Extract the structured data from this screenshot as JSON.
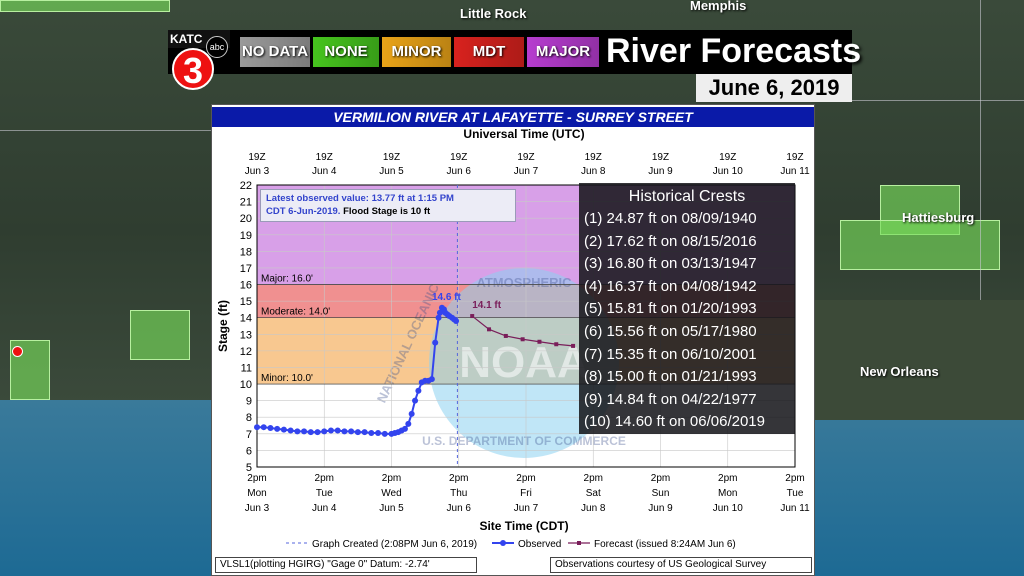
{
  "header": {
    "station_call": "KATC",
    "station_number": "3",
    "network": "abc",
    "categories": [
      {
        "label": "NO DATA",
        "color": "#9a9a9a"
      },
      {
        "label": "NONE",
        "color": "#46c41e"
      },
      {
        "label": "MINOR",
        "color": "#e9a318"
      },
      {
        "label": "MDT",
        "color": "#d8221e"
      },
      {
        "label": "MAJOR",
        "color": "#b63ccf"
      }
    ],
    "title": "River Forecasts",
    "date": "June 6, 2019"
  },
  "map_labels": {
    "little_rock": "Little Rock",
    "memphis": "Memphis",
    "hattiesburg": "Hattiesburg",
    "new_orleans": "New Orleans"
  },
  "panel": {
    "title": "VERMILION RIVER AT LAFAYETTE - SURREY STREET",
    "note_line1": "Latest observed value: 13.77 ft at 1:15 PM",
    "note_line2a": "CDT 6-Jun-2019.",
    "note_line2b": "Flood Stage is 10 ft",
    "footer_left": "VLSL1(plotting HGIRG) \"Gage 0\" Datum: -2.74'",
    "footer_right": "Observations courtesy of US Geological Survey"
  },
  "crests": {
    "title": "Historical Crests",
    "items": [
      "(1) 24.87 ft on 08/09/1940",
      "(2) 17.62 ft on 08/15/2016",
      "(3) 16.80 ft on 03/13/1947",
      "(4) 16.37 ft on 04/08/1942",
      "(5) 15.81 ft on 01/20/1993",
      "(6) 15.56 ft on 05/17/1980",
      "(7) 15.35 ft on 06/10/2001",
      "(8) 15.00 ft on 01/21/1993",
      "(9) 14.84 ft on 04/22/1977",
      "(10) 14.60 ft on 06/06/2019"
    ]
  },
  "chart_data": {
    "type": "line",
    "title": "VERMILION RIVER AT LAFAYETTE - SURREY STREET",
    "xlabel": "Site Time (CDT)",
    "x2label": "Universal Time (UTC)",
    "ylabel": "Stage (ft)",
    "ylim": [
      5,
      22
    ],
    "xlim": [
      "Jun 3 2pm",
      "Jun 11 2pm"
    ],
    "yticks": [
      5,
      6,
      7,
      8,
      9,
      10,
      11,
      12,
      13,
      14,
      15,
      16,
      17,
      18,
      19,
      20,
      21,
      22
    ],
    "xticks_bottom": [
      [
        "2pm",
        "Mon",
        "Jun 3"
      ],
      [
        "2pm",
        "Tue",
        "Jun 4"
      ],
      [
        "2pm",
        "Wed",
        "Jun 5"
      ],
      [
        "2pm",
        "Thu",
        "Jun 6"
      ],
      [
        "2pm",
        "Fri",
        "Jun 7"
      ],
      [
        "2pm",
        "Sat",
        "Jun 8"
      ],
      [
        "2pm",
        "Sun",
        "Jun 9"
      ],
      [
        "2pm",
        "Mon",
        "Jun 10"
      ],
      [
        "2pm",
        "Tue",
        "Jun 11"
      ]
    ],
    "xticks_top": [
      [
        "19Z",
        "Jun 3"
      ],
      [
        "19Z",
        "Jun 4"
      ],
      [
        "19Z",
        "Jun 5"
      ],
      [
        "19Z",
        "Jun 6"
      ],
      [
        "19Z",
        "Jun 7"
      ],
      [
        "19Z",
        "Jun 8"
      ],
      [
        "19Z",
        "Jun 9"
      ],
      [
        "19Z",
        "Jun 10"
      ],
      [
        "19Z",
        "Jun 11"
      ]
    ],
    "bands": [
      {
        "name": "Major",
        "label": "Major: 16.0'",
        "from": 16,
        "to": 22,
        "color": "#d8a0e8"
      },
      {
        "name": "Moderate",
        "label": "Moderate: 14.0'",
        "from": 14,
        "to": 16,
        "color": "#f09090"
      },
      {
        "name": "Minor",
        "label": "Minor: 10.0'",
        "from": 10,
        "to": 14,
        "color": "#f8c890"
      }
    ],
    "graph_created_day": 2.98,
    "series": [
      {
        "name": "Observed",
        "color": "#3344ee",
        "x": [
          0.0,
          0.1,
          0.2,
          0.3,
          0.4,
          0.5,
          0.6,
          0.7,
          0.8,
          0.9,
          1.0,
          1.1,
          1.2,
          1.3,
          1.4,
          1.5,
          1.6,
          1.7,
          1.8,
          1.9,
          2.0,
          2.05,
          2.1,
          2.15,
          2.2,
          2.25,
          2.3,
          2.35,
          2.4,
          2.45,
          2.5,
          2.55,
          2.6,
          2.65,
          2.7,
          2.72,
          2.75,
          2.78,
          2.8,
          2.83,
          2.86,
          2.9,
          2.93,
          2.96
        ],
        "y": [
          7.4,
          7.4,
          7.35,
          7.3,
          7.25,
          7.2,
          7.15,
          7.15,
          7.1,
          7.1,
          7.15,
          7.2,
          7.2,
          7.15,
          7.15,
          7.1,
          7.1,
          7.05,
          7.05,
          7.0,
          7.0,
          7.05,
          7.1,
          7.2,
          7.3,
          7.6,
          8.2,
          9.0,
          9.6,
          10.1,
          10.2,
          10.2,
          10.3,
          12.5,
          14.0,
          14.3,
          14.6,
          14.5,
          14.3,
          14.2,
          14.1,
          14.0,
          13.9,
          13.8
        ]
      },
      {
        "name": "Forecast (issued 8:24AM Jun 6)",
        "color": "#7a1e5a",
        "x": [
          3.2,
          3.45,
          3.7,
          3.95,
          4.2,
          4.45,
          4.7
        ],
        "y": [
          14.1,
          13.3,
          12.9,
          12.7,
          12.55,
          12.4,
          12.3
        ]
      }
    ],
    "annotations": [
      {
        "text": "14.6 ft",
        "x": 2.75,
        "y": 14.6
      },
      {
        "text": "14.1 ft",
        "x": 3.2,
        "y": 14.1
      }
    ],
    "legend": {
      "graph_created": "Graph Created (2:08PM Jun 6, 2019)",
      "observed": "Observed",
      "forecast": "Forecast (issued 8:24AM Jun 6)",
      "placement": "bottom"
    },
    "watermark_top": "ATMOSPHERIC",
    "watermark_left": "NATIONAL OCEANIC",
    "watermark_bottom": "U.S. DEPARTMENT OF COMMERCE",
    "watermark_center": "NOAA"
  }
}
